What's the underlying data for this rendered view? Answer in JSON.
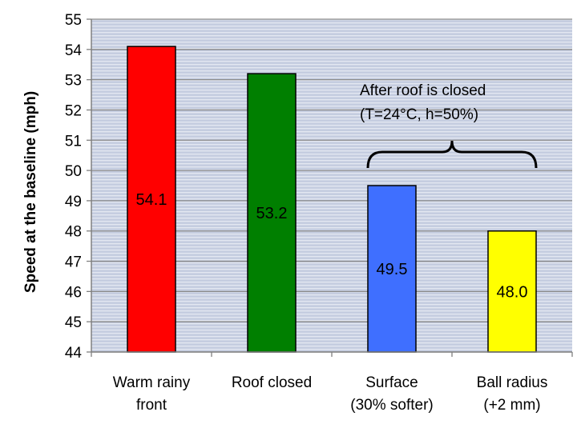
{
  "chart_data": {
    "type": "bar",
    "categories": [
      [
        "Warm rainy",
        "front"
      ],
      [
        "Roof closed"
      ],
      [
        "Surface",
        "(30% softer)"
      ],
      [
        "Ball radius",
        "(+2 mm)"
      ]
    ],
    "values": [
      54.1,
      53.2,
      49.5,
      48.0
    ],
    "data_labels": [
      "54.1",
      "53.2",
      "49.5",
      "48.0"
    ],
    "colors": [
      "#ff0000",
      "#007f00",
      "#3f6fff",
      "#ffff00"
    ],
    "ylabel": "Speed at the baseline (mph)",
    "xlabel": "",
    "title": "",
    "ylim": [
      44,
      55
    ],
    "yticks": [
      44,
      45,
      46,
      47,
      48,
      49,
      50,
      51,
      52,
      53,
      54,
      55
    ],
    "grid": true,
    "annotation": {
      "lines": [
        "After roof is closed",
        "(T=24°C, h=50%)"
      ],
      "spans_categories": [
        2,
        3
      ]
    }
  }
}
